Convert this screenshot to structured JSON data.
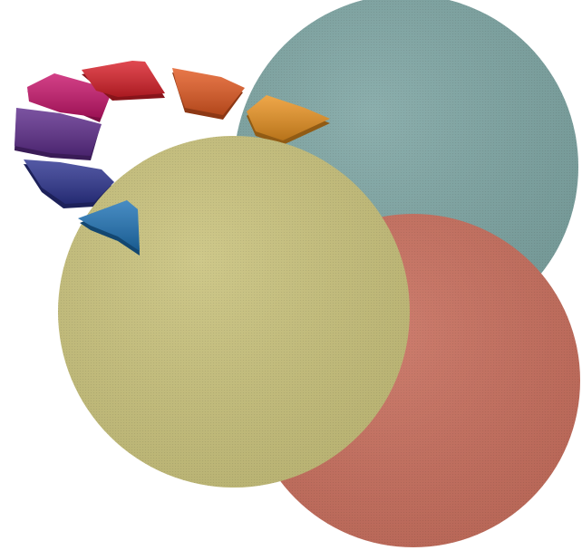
{
  "discs": [
    {
      "name": "teal-disc",
      "color": "#7fa6a4"
    },
    {
      "name": "coral-disc",
      "color": "#c8705f"
    },
    {
      "name": "khaki-disc",
      "color": "#c9c27d"
    }
  ],
  "spectrum_segments": [
    {
      "name": "blue",
      "color": "#1f73b6"
    },
    {
      "name": "indigo",
      "color": "#2e3591"
    },
    {
      "name": "violet",
      "color": "#5e2d8c"
    },
    {
      "name": "magenta",
      "color": "#c8166c"
    },
    {
      "name": "red",
      "color": "#d9212a"
    },
    {
      "name": "orange",
      "color": "#e35a22"
    },
    {
      "name": "amber",
      "color": "#ea9321"
    }
  ]
}
